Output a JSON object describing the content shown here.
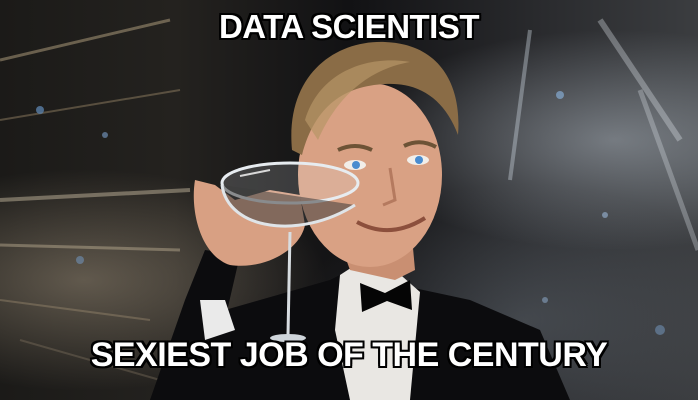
{
  "meme": {
    "top_text": "DATA SCIENTIST",
    "bottom_text": "SEXIEST JOB OF THE CENTURY"
  }
}
